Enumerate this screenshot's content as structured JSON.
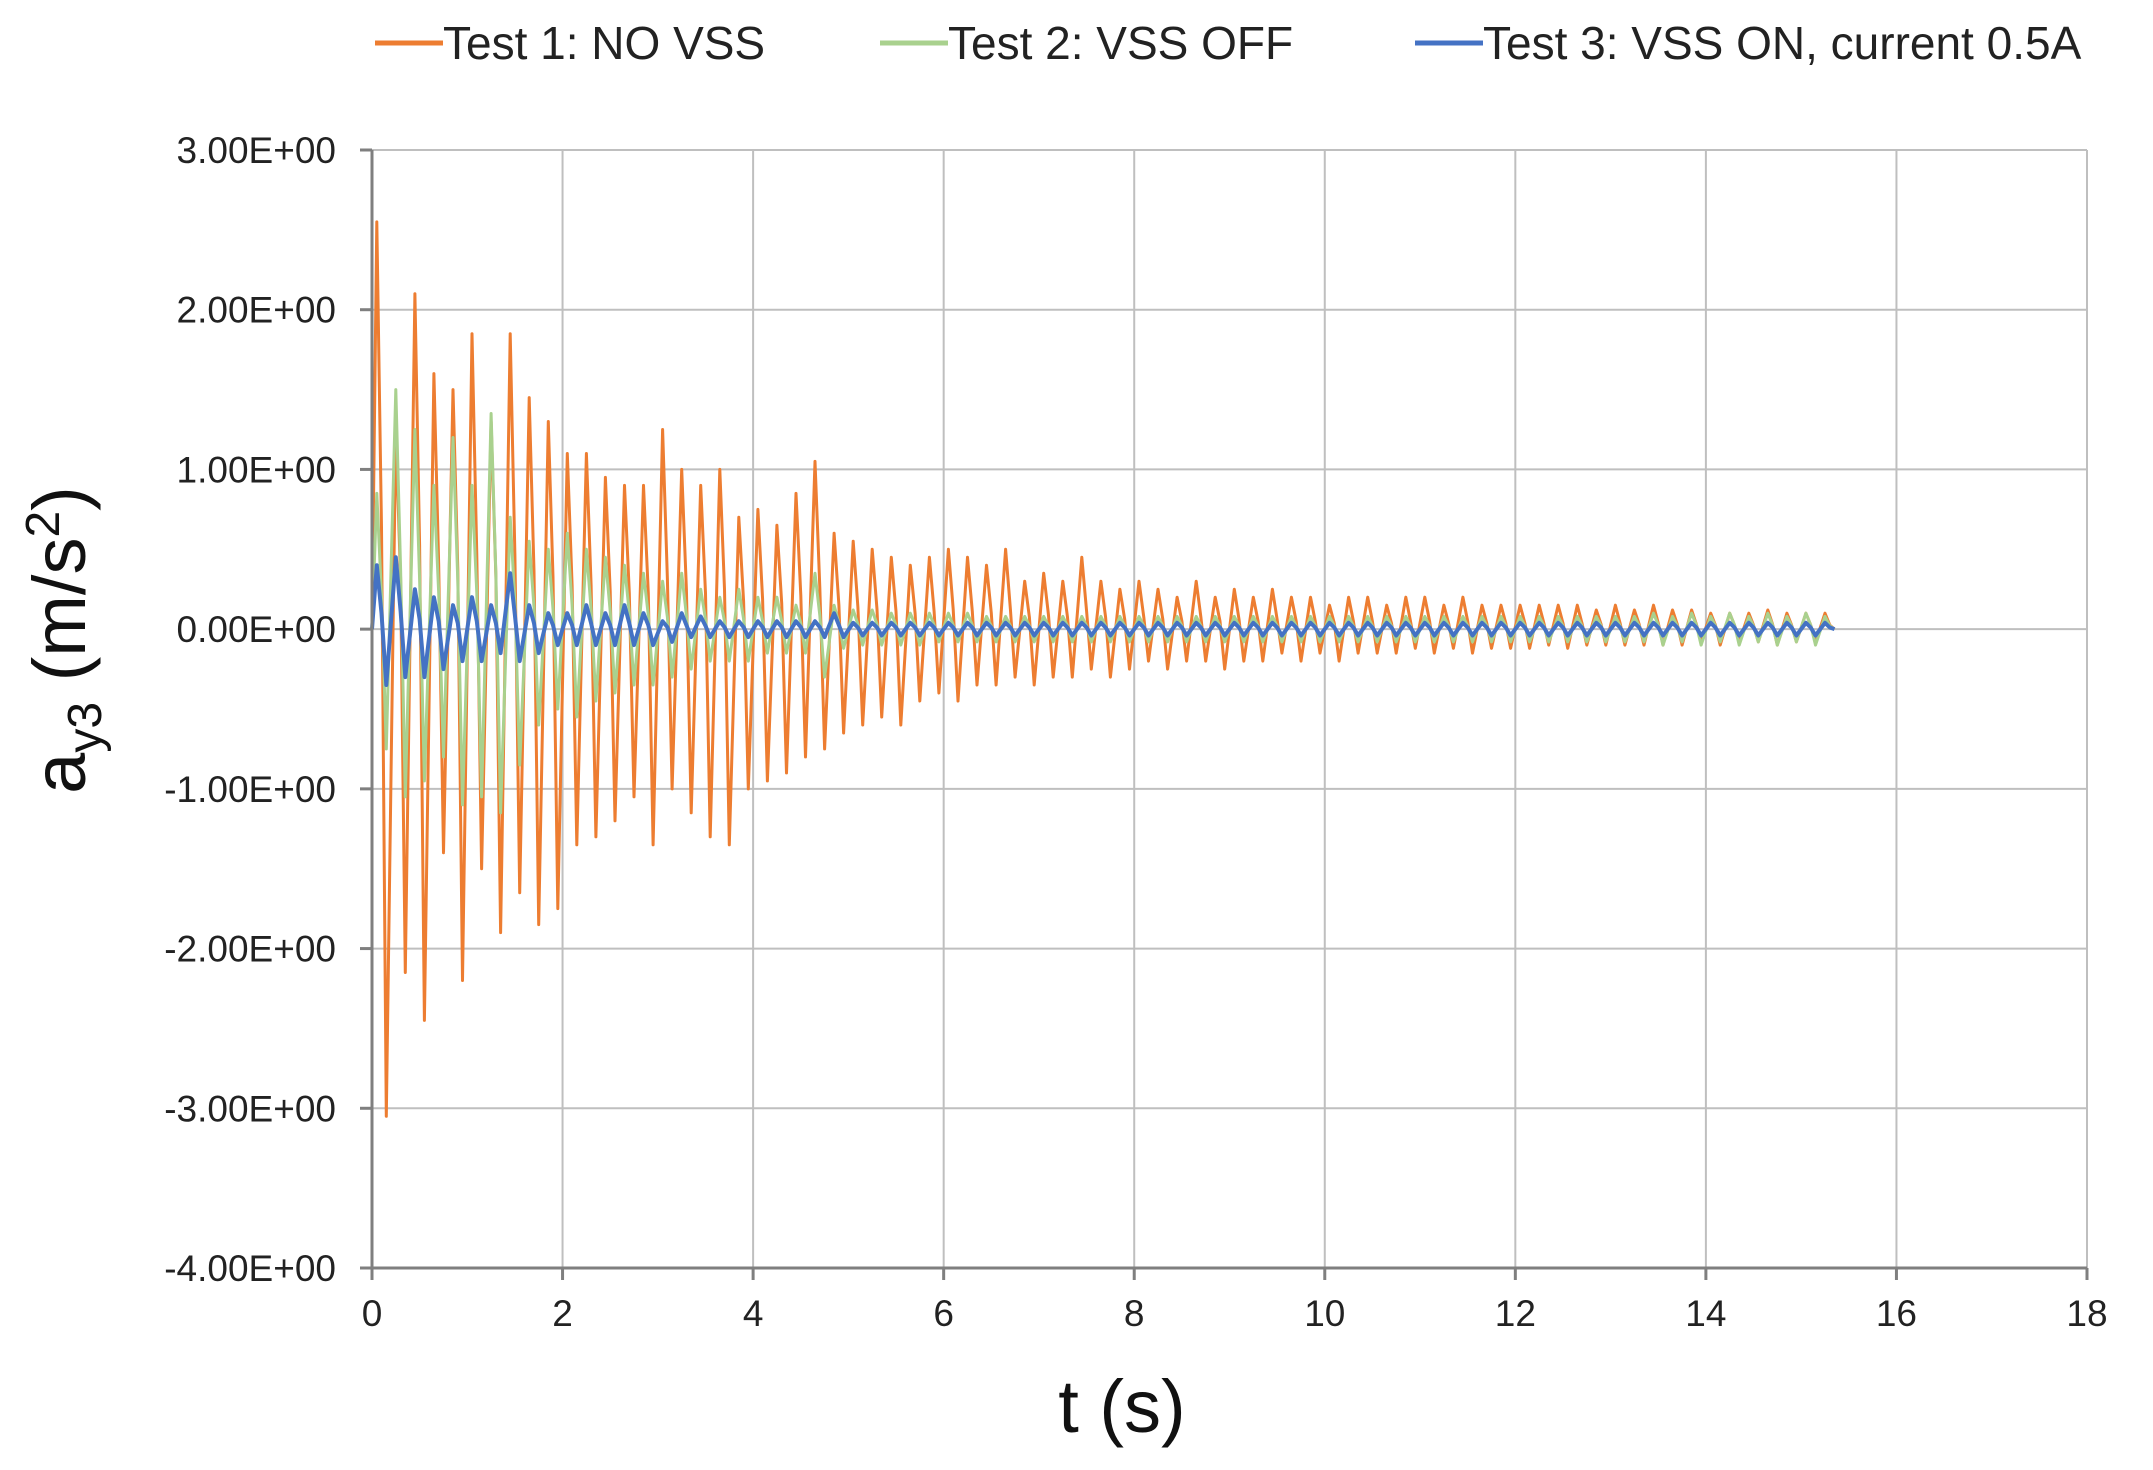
{
  "chart_data": {
    "type": "line",
    "title": "",
    "xlabel": "t (s)",
    "ylabel": {
      "base": "a",
      "subscript": "y3",
      "unit_open": " (m/s",
      "unit_sup": "2",
      "unit_close": ")"
    },
    "xlim": [
      0,
      18
    ],
    "ylim": [
      -4,
      3
    ],
    "x_ticks": [
      0,
      2,
      4,
      6,
      8,
      10,
      12,
      14,
      16,
      18
    ],
    "x_tick_labels": [
      "0",
      "2",
      "4",
      "6",
      "8",
      "10",
      "12",
      "14",
      "16",
      "18"
    ],
    "y_ticks": [
      3,
      2,
      1,
      0,
      -1,
      -2,
      -3,
      -4
    ],
    "y_tick_labels": [
      "3.00E+00",
      "2.00E+00",
      "1.00E+00",
      "0.00E+00",
      "-1.00E+00",
      "-2.00E+00",
      "-3.00E+00",
      "-4.00E+00"
    ],
    "grid": true,
    "legend_position": "top",
    "sampling": {
      "t_start": 0,
      "t_end": 15.35,
      "period_s": 0.2
    },
    "series": [
      {
        "name": "Test 1: NO VSS",
        "color": "#ED7D31",
        "peaks": [
          2.55,
          1.25,
          2.1,
          1.6,
          1.5,
          1.85,
          1.3,
          1.85,
          1.45,
          1.3,
          1.1,
          1.1,
          0.95,
          0.9,
          0.9,
          1.25,
          1.0,
          0.9,
          1.0,
          0.7,
          0.75,
          0.65,
          0.85,
          1.05,
          0.6,
          0.55,
          0.5,
          0.45,
          0.4,
          0.45,
          0.5,
          0.45,
          0.4,
          0.5,
          0.3,
          0.35,
          0.3,
          0.45,
          0.3,
          0.25,
          0.3,
          0.25,
          0.2,
          0.3,
          0.2,
          0.25,
          0.2,
          0.25,
          0.2,
          0.2,
          0.15,
          0.2,
          0.2,
          0.15,
          0.2,
          0.2,
          0.15,
          0.2,
          0.15,
          0.15,
          0.15,
          0.15,
          0.15,
          0.15,
          0.12,
          0.15,
          0.12,
          0.15,
          0.12,
          0.12,
          0.1,
          0.1,
          0.1,
          0.12,
          0.1,
          0.1,
          0.1
        ],
        "troughs": [
          -3.05,
          -2.15,
          -2.45,
          -1.4,
          -2.2,
          -1.5,
          -1.9,
          -1.65,
          -1.85,
          -1.75,
          -1.35,
          -1.3,
          -1.2,
          -1.05,
          -1.35,
          -1.0,
          -1.15,
          -1.3,
          -1.35,
          -1.0,
          -0.95,
          -0.9,
          -0.8,
          -0.75,
          -0.65,
          -0.6,
          -0.55,
          -0.6,
          -0.45,
          -0.4,
          -0.45,
          -0.35,
          -0.35,
          -0.3,
          -0.35,
          -0.3,
          -0.3,
          -0.25,
          -0.3,
          -0.25,
          -0.2,
          -0.25,
          -0.2,
          -0.2,
          -0.25,
          -0.2,
          -0.2,
          -0.15,
          -0.2,
          -0.15,
          -0.2,
          -0.15,
          -0.15,
          -0.15,
          -0.12,
          -0.15,
          -0.12,
          -0.15,
          -0.12,
          -0.12,
          -0.12,
          -0.1,
          -0.12,
          -0.1,
          -0.1,
          -0.1,
          -0.1,
          -0.1,
          -0.1,
          -0.08,
          -0.1,
          -0.08,
          -0.08,
          -0.1,
          -0.08,
          -0.08,
          -0.08
        ]
      },
      {
        "name": "Test 2: VSS OFF",
        "color": "#A9D18E",
        "peaks": [
          0.85,
          1.5,
          1.25,
          0.9,
          1.2,
          0.9,
          1.35,
          0.7,
          0.55,
          0.5,
          0.6,
          0.5,
          0.45,
          0.4,
          0.35,
          0.3,
          0.35,
          0.25,
          0.2,
          0.25,
          0.2,
          0.2,
          0.15,
          0.35,
          0.15,
          0.12,
          0.12,
          0.1,
          0.1,
          0.1,
          0.1,
          0.1,
          0.08,
          0.08,
          0.08,
          0.08,
          0.08,
          0.08,
          0.08,
          0.08,
          0.08,
          0.08,
          0.08,
          0.08,
          0.08,
          0.08,
          0.08,
          0.08,
          0.08,
          0.08,
          0.08,
          0.08,
          0.08,
          0.08,
          0.08,
          0.08,
          0.08,
          0.08,
          0.08,
          0.08,
          0.08,
          0.08,
          0.08,
          0.08,
          0.08,
          0.08,
          0.08,
          0.1,
          0.08,
          0.1,
          0.08,
          0.1,
          0.08,
          0.1,
          0.08,
          0.1,
          0.08
        ],
        "troughs": [
          -0.75,
          -1.05,
          -0.95,
          -0.8,
          -1.1,
          -1.05,
          -1.15,
          -0.85,
          -0.6,
          -0.5,
          -0.55,
          -0.45,
          -0.4,
          -0.35,
          -0.35,
          -0.3,
          -0.25,
          -0.2,
          -0.2,
          -0.2,
          -0.15,
          -0.15,
          -0.15,
          -0.3,
          -0.12,
          -0.1,
          -0.1,
          -0.1,
          -0.1,
          -0.08,
          -0.08,
          -0.08,
          -0.08,
          -0.08,
          -0.08,
          -0.08,
          -0.08,
          -0.08,
          -0.08,
          -0.08,
          -0.08,
          -0.08,
          -0.08,
          -0.08,
          -0.08,
          -0.08,
          -0.08,
          -0.08,
          -0.08,
          -0.08,
          -0.08,
          -0.08,
          -0.08,
          -0.08,
          -0.08,
          -0.08,
          -0.08,
          -0.08,
          -0.08,
          -0.08,
          -0.08,
          -0.08,
          -0.08,
          -0.08,
          -0.08,
          -0.08,
          -0.08,
          -0.1,
          -0.08,
          -0.1,
          -0.08,
          -0.1,
          -0.08,
          -0.1,
          -0.08,
          -0.1,
          -0.08
        ]
      },
      {
        "name": "Test 3: VSS ON, current 0.5A",
        "color": "#4472C4",
        "peaks": [
          0.4,
          0.45,
          0.25,
          0.2,
          0.15,
          0.2,
          0.15,
          0.35,
          0.15,
          0.1,
          0.1,
          0.15,
          0.1,
          0.15,
          0.1,
          0.05,
          0.1,
          0.08,
          0.05,
          0.05,
          0.05,
          0.05,
          0.05,
          0.05,
          0.1,
          0.04,
          0.04,
          0.04,
          0.04,
          0.04,
          0.04,
          0.04,
          0.04,
          0.04,
          0.04,
          0.04,
          0.04,
          0.04,
          0.04,
          0.04,
          0.04,
          0.04,
          0.04,
          0.04,
          0.04,
          0.04,
          0.04,
          0.04,
          0.04,
          0.04,
          0.04,
          0.04,
          0.04,
          0.04,
          0.04,
          0.04,
          0.04,
          0.04,
          0.04,
          0.04,
          0.04,
          0.04,
          0.04,
          0.04,
          0.04,
          0.04,
          0.04,
          0.04,
          0.04,
          0.04,
          0.04,
          0.04,
          0.04,
          0.04,
          0.04,
          0.04,
          0.04
        ],
        "troughs": [
          -0.35,
          -0.3,
          -0.3,
          -0.25,
          -0.2,
          -0.2,
          -0.15,
          -0.2,
          -0.15,
          -0.1,
          -0.1,
          -0.1,
          -0.1,
          -0.1,
          -0.1,
          -0.08,
          -0.05,
          -0.05,
          -0.05,
          -0.05,
          -0.05,
          -0.05,
          -0.05,
          -0.05,
          -0.05,
          -0.04,
          -0.04,
          -0.04,
          -0.04,
          -0.04,
          -0.04,
          -0.04,
          -0.04,
          -0.04,
          -0.04,
          -0.04,
          -0.04,
          -0.04,
          -0.04,
          -0.04,
          -0.04,
          -0.04,
          -0.04,
          -0.04,
          -0.04,
          -0.04,
          -0.04,
          -0.04,
          -0.04,
          -0.04,
          -0.04,
          -0.04,
          -0.04,
          -0.04,
          -0.04,
          -0.04,
          -0.04,
          -0.04,
          -0.04,
          -0.04,
          -0.04,
          -0.04,
          -0.04,
          -0.04,
          -0.04,
          -0.04,
          -0.04,
          -0.04,
          -0.04,
          -0.04,
          -0.04,
          -0.04,
          -0.04,
          -0.04,
          -0.04,
          -0.04,
          -0.04
        ]
      }
    ]
  }
}
